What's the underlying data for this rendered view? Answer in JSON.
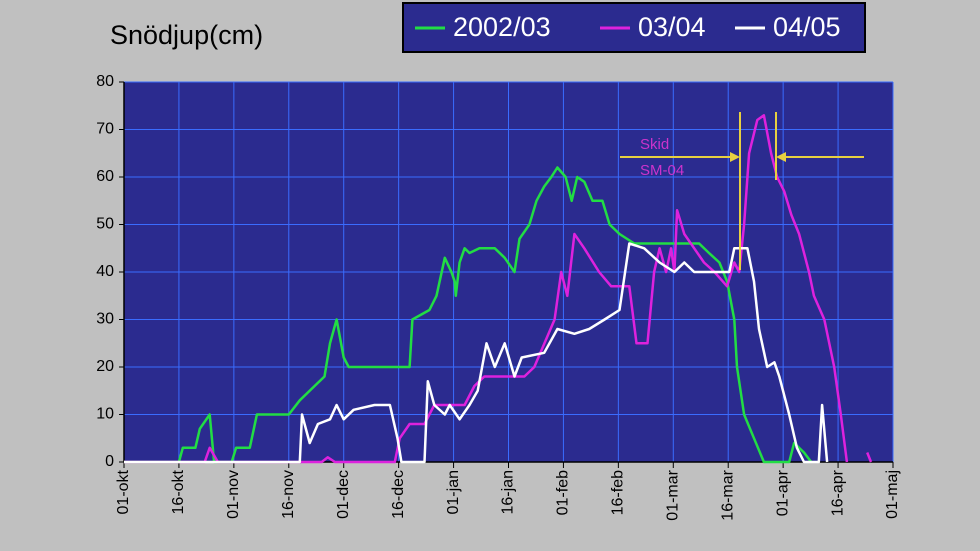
{
  "chart_data": {
    "type": "line",
    "title": "Snödjup(cm)",
    "xlim": [
      0,
      14
    ],
    "xticks": [
      {
        "value": 0,
        "label": "01-okt"
      },
      {
        "value": 1,
        "label": "16-okt"
      },
      {
        "value": 2,
        "label": "01-nov"
      },
      {
        "value": 3,
        "label": "16-nov"
      },
      {
        "value": 4,
        "label": "01-dec"
      },
      {
        "value": 5,
        "label": "16-dec"
      },
      {
        "value": 6,
        "label": "01-jan"
      },
      {
        "value": 7,
        "label": "16-jan"
      },
      {
        "value": 8,
        "label": "01-feb"
      },
      {
        "value": 9,
        "label": "16-feb"
      },
      {
        "value": 10,
        "label": "01-mar"
      },
      {
        "value": 11,
        "label": "16-mar"
      },
      {
        "value": 12,
        "label": "01-apr"
      },
      {
        "value": 13,
        "label": "16-apr"
      },
      {
        "value": 14,
        "label": "01-maj"
      }
    ],
    "ylim": [
      0,
      80
    ],
    "yticks": [
      0,
      10,
      20,
      30,
      40,
      50,
      60,
      70,
      80
    ],
    "grid": true,
    "annotation": [
      "Skid",
      "SM-04"
    ],
    "series": [
      {
        "name": "2002/03",
        "color": "#22dd44",
        "x": [
          0,
          1.0,
          1.07,
          1.3,
          1.38,
          1.56,
          1.64,
          1.96,
          2.04,
          2.29,
          2.42,
          3.0,
          3.2,
          3.47,
          3.65,
          3.75,
          3.87,
          4.0,
          4.09,
          5.2,
          5.25,
          5.56,
          5.69,
          5.84,
          5.96,
          6.02,
          6.04,
          6.11,
          6.2,
          6.29,
          6.47,
          6.75,
          6.93,
          7.11,
          7.2,
          7.38,
          7.51,
          7.65,
          7.78,
          7.89,
          8.04,
          8.15,
          8.25,
          8.38,
          8.53,
          8.71,
          8.84,
          9.02,
          9.29,
          9.84,
          10.47,
          10.65,
          10.84,
          10.98,
          11.11,
          11.16,
          11.29,
          11.47,
          11.65,
          12.11,
          12.2,
          12.38,
          12.51
        ],
        "values": [
          0,
          0,
          3,
          3,
          7,
          10,
          0,
          0,
          3,
          3,
          10,
          10,
          13,
          16,
          18,
          25,
          30,
          22,
          20,
          20,
          30,
          32,
          35,
          43,
          40,
          38,
          35,
          42,
          45,
          44,
          45,
          45,
          43,
          40,
          47,
          50,
          55,
          58,
          60,
          62,
          60,
          55,
          60,
          59,
          55,
          55,
          50,
          48,
          46,
          46,
          46,
          44,
          42,
          38,
          30,
          20,
          10,
          5,
          0,
          0,
          4,
          2,
          0
        ]
      },
      {
        "name": "03/04",
        "color": "#dd22dd",
        "x": [
          0,
          1.47,
          1.56,
          1.71,
          3.6,
          3.71,
          3.84,
          4.93,
          5.02,
          5.2,
          5.47,
          5.65,
          6.2,
          6.38,
          6.56,
          7.29,
          7.47,
          7.84,
          7.96,
          8.07,
          8.2,
          8.38,
          8.65,
          8.87,
          9.2,
          9.33,
          9.53,
          9.65,
          9.75,
          9.87,
          9.96,
          10.02,
          10.07,
          10.2,
          10.38,
          10.56,
          10.75,
          10.98,
          11.11,
          11.2,
          11.29,
          11.38,
          11.53,
          11.65,
          11.78,
          11.89,
          12.02,
          12.15,
          12.29,
          12.47,
          12.56,
          12.75,
          12.93,
          13.05,
          13.16,
          null,
          13.53,
          13.6
        ],
        "values": [
          0,
          0,
          3,
          0,
          0,
          1,
          0,
          0,
          5,
          8,
          8,
          12,
          12,
          16,
          18,
          18,
          20,
          30,
          40,
          35,
          48,
          45,
          40,
          37,
          37,
          25,
          25,
          40,
          45,
          40,
          45,
          40,
          53,
          48,
          45,
          42,
          40,
          37,
          42,
          40,
          50,
          65,
          72,
          73,
          65,
          60,
          57,
          52,
          48,
          40,
          35,
          30,
          20,
          10,
          0,
          null,
          2,
          0
        ]
      },
      {
        "name": "04/05",
        "color": "#ffffff",
        "x": [
          0,
          3.2,
          3.24,
          3.38,
          3.53,
          3.75,
          3.87,
          4.0,
          4.18,
          4.56,
          4.84,
          4.98,
          5.05,
          5.47,
          5.53,
          5.65,
          5.84,
          5.93,
          6.11,
          6.29,
          6.44,
          6.6,
          6.75,
          6.93,
          7.11,
          7.24,
          7.65,
          7.89,
          8.2,
          8.47,
          8.75,
          9.02,
          9.2,
          9.47,
          9.75,
          10.02,
          10.2,
          10.38,
          11.02,
          11.11,
          11.35,
          11.47,
          11.56,
          11.71,
          11.84,
          11.93,
          12.11,
          12.25,
          12.38,
          12.65,
          12.71,
          12.8
        ],
        "values": [
          0,
          0,
          10,
          4,
          8,
          9,
          12,
          9,
          11,
          12,
          12,
          5,
          0,
          0,
          17,
          12,
          10,
          12,
          9,
          12,
          15,
          25,
          20,
          25,
          18,
          22,
          23,
          28,
          27,
          28,
          30,
          32,
          46,
          45,
          42,
          40,
          42,
          40,
          40,
          45,
          45,
          38,
          28,
          20,
          21,
          18,
          10,
          3,
          0,
          0,
          12,
          0
        ]
      }
    ]
  }
}
